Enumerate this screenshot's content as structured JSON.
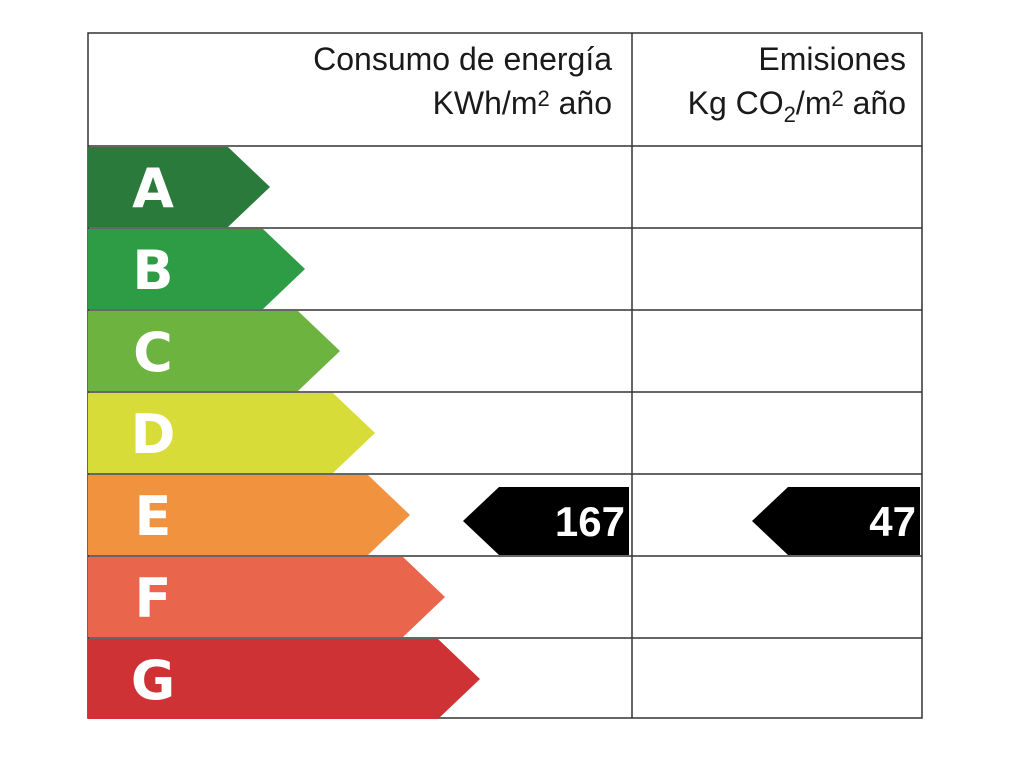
{
  "header": {
    "energy": {
      "line1": "Consumo de energía",
      "line2": {
        "unit": "KWh/m",
        "power": "2",
        "rest": " año"
      }
    },
    "emissions": {
      "line1": "Emisiones",
      "line2": {
        "unit": "Kg CO",
        "sub": "2",
        "mid": "/m",
        "power": "2",
        "rest": " año"
      }
    }
  },
  "ratings": [
    {
      "letter": "A",
      "color": "#2a7a3b"
    },
    {
      "letter": "B",
      "color": "#2e9b45"
    },
    {
      "letter": "C",
      "color": "#6db33f"
    },
    {
      "letter": "D",
      "color": "#d8dc38"
    },
    {
      "letter": "E",
      "color": "#f0923e"
    },
    {
      "letter": "F",
      "color": "#e9654b"
    },
    {
      "letter": "G",
      "color": "#cf3234"
    }
  ],
  "energy_indicator": {
    "value": 167,
    "rating": "E"
  },
  "emissions_indicator": {
    "value": 47,
    "rating": "E"
  }
}
